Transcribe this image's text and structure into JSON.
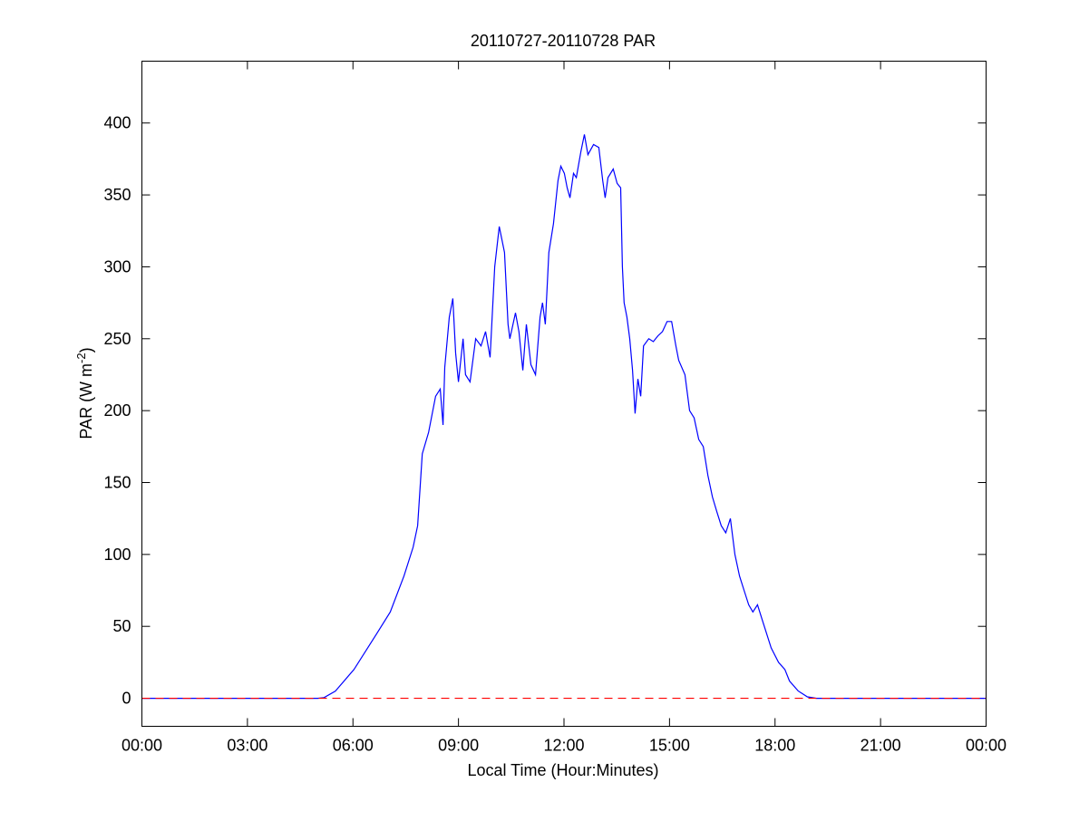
{
  "chart_data": {
    "type": "line",
    "title": "20110727-20110728 PAR",
    "xlabel": "Local Time (Hour:Minutes)",
    "ylabel_main": "PAR (W m",
    "ylabel_sup": "-2",
    "ylabel_end": ")",
    "xlim": [
      0,
      24
    ],
    "ylim": [
      -19.5,
      443
    ],
    "grid": false,
    "x_ticks": [
      0,
      3,
      6,
      9,
      12,
      15,
      18,
      21,
      24
    ],
    "x_tick_labels": [
      "00:00",
      "03:00",
      "06:00",
      "09:00",
      "12:00",
      "15:00",
      "18:00",
      "21:00",
      "00:00"
    ],
    "y_ticks": [
      0,
      50,
      100,
      150,
      200,
      250,
      300,
      350,
      400
    ],
    "y_tick_labels": [
      "0",
      "50",
      "100",
      "150",
      "200",
      "250",
      "300",
      "350",
      "400"
    ],
    "colors": {
      "series": "#0000ff",
      "reference": "#ff0000"
    },
    "series": [
      {
        "name": "PAR",
        "x": [
          0,
          5.0,
          5.18,
          5.5,
          6.03,
          6.68,
          7.06,
          7.45,
          7.71,
          7.84,
          7.97,
          8.15,
          8.35,
          8.48,
          8.56,
          8.61,
          8.74,
          8.84,
          8.92,
          9.0,
          9.13,
          9.2,
          9.33,
          9.49,
          9.64,
          9.77,
          9.9,
          10.03,
          10.16,
          10.31,
          10.41,
          10.46,
          10.62,
          10.72,
          10.83,
          10.93,
          11.06,
          11.19,
          11.32,
          11.39,
          11.47,
          11.57,
          11.7,
          11.83,
          11.91,
          12.01,
          12.09,
          12.17,
          12.27,
          12.35,
          12.48,
          12.58,
          12.68,
          12.84,
          12.99,
          13.1,
          13.17,
          13.25,
          13.4,
          13.51,
          13.61,
          13.66,
          13.71,
          13.79,
          13.87,
          13.95,
          14.02,
          14.1,
          14.18,
          14.26,
          14.41,
          14.54,
          14.67,
          14.8,
          14.93,
          15.06,
          15.18,
          15.26,
          15.44,
          15.57,
          15.7,
          15.83,
          15.96,
          16.09,
          16.22,
          16.34,
          16.47,
          16.6,
          16.73,
          16.86,
          16.99,
          17.12,
          17.25,
          17.37,
          17.5,
          17.63,
          17.89,
          18.1,
          18.28,
          18.41,
          18.66,
          18.92,
          19.18,
          24
        ],
        "y": [
          0,
          0,
          0.5,
          5,
          20,
          45,
          60,
          85,
          105,
          120,
          170,
          185,
          210,
          215,
          190,
          230,
          265,
          278,
          240,
          220,
          250,
          225,
          220,
          250,
          245,
          255,
          237,
          300,
          328,
          310,
          260,
          250,
          268,
          255,
          228,
          260,
          232,
          225,
          265,
          275,
          260,
          310,
          330,
          360,
          370,
          365,
          355,
          348,
          365,
          362,
          380,
          392,
          378,
          385,
          383,
          360,
          348,
          362,
          368,
          358,
          355,
          300,
          275,
          265,
          250,
          228,
          198,
          222,
          210,
          245,
          250,
          248,
          252,
          255,
          262,
          262,
          245,
          235,
          225,
          200,
          195,
          180,
          175,
          155,
          140,
          130,
          120,
          115,
          125,
          100,
          85,
          75,
          65,
          60,
          65,
          55,
          35,
          25,
          20,
          12,
          5,
          1,
          0,
          0
        ]
      }
    ],
    "reference_line": {
      "y": 0,
      "style": "dashed"
    }
  }
}
